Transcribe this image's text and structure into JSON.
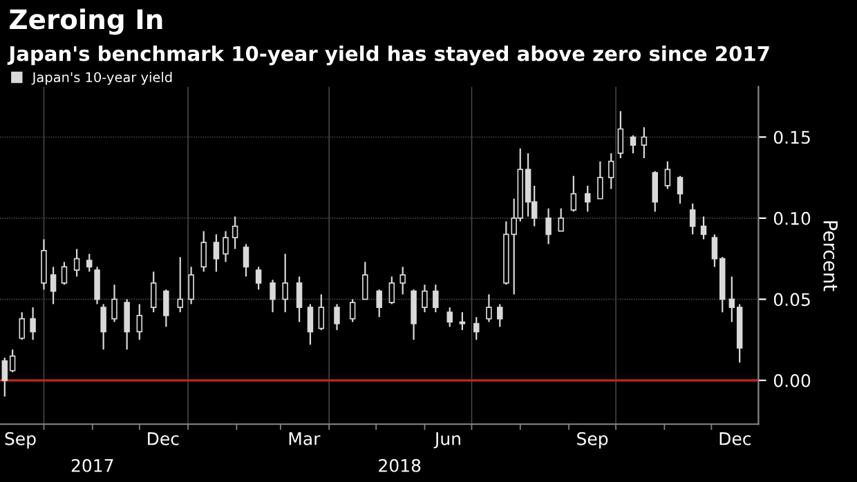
{
  "chart_data": {
    "type": "candlestick",
    "title": "Zeroing In",
    "subtitle": "Japan's benchmark 10-year yield has stayed above zero since 2017",
    "ylabel": "Percent",
    "series": [
      {
        "name": "Japan's 10-year yield",
        "color": "#d9d9d9",
        "x": [
          "2017-09-06",
          "2017-09-11",
          "2017-09-17",
          "2017-09-24",
          "2017-10-01",
          "2017-10-07",
          "2017-10-14",
          "2017-10-22",
          "2017-10-30",
          "2017-11-04",
          "2017-11-08",
          "2017-11-15",
          "2017-11-23",
          "2017-12-01",
          "2017-12-10",
          "2017-12-18",
          "2017-12-27",
          "2018-01-03",
          "2018-01-11",
          "2018-01-19",
          "2018-01-25",
          "2018-01-31",
          "2018-02-07",
          "2018-02-15",
          "2018-02-24",
          "2018-03-04",
          "2018-03-13",
          "2018-03-20",
          "2018-03-27",
          "2018-04-06",
          "2018-04-16",
          "2018-04-24",
          "2018-05-03",
          "2018-05-11",
          "2018-05-18",
          "2018-05-25",
          "2018-06-01",
          "2018-06-08",
          "2018-06-17",
          "2018-06-25",
          "2018-07-04",
          "2018-07-12",
          "2018-07-19",
          "2018-07-23",
          "2018-07-28",
          "2018-08-01",
          "2018-08-06",
          "2018-08-10",
          "2018-08-19",
          "2018-08-27",
          "2018-09-04",
          "2018-09-13",
          "2018-09-21",
          "2018-09-28",
          "2018-10-04",
          "2018-10-12",
          "2018-10-19",
          "2018-10-26",
          "2018-11-03",
          "2018-11-11",
          "2018-11-19",
          "2018-11-26",
          "2018-12-03",
          "2018-12-08",
          "2018-12-14",
          "2018-12-19"
        ],
        "ohlc": [
          [
            0.012,
            0.014,
            -0.01,
            0.0
          ],
          [
            0.006,
            0.019,
            0.005,
            0.015
          ],
          [
            0.026,
            0.042,
            0.025,
            0.038
          ],
          [
            0.038,
            0.045,
            0.025,
            0.03
          ],
          [
            0.06,
            0.087,
            0.056,
            0.08
          ],
          [
            0.065,
            0.07,
            0.047,
            0.055
          ],
          [
            0.06,
            0.073,
            0.059,
            0.07
          ],
          [
            0.068,
            0.081,
            0.064,
            0.075
          ],
          [
            0.074,
            0.078,
            0.067,
            0.07
          ],
          [
            0.068,
            0.07,
            0.047,
            0.05
          ],
          [
            0.045,
            0.047,
            0.019,
            0.03
          ],
          [
            0.038,
            0.059,
            0.036,
            0.05
          ],
          [
            0.048,
            0.05,
            0.019,
            0.03
          ],
          [
            0.03,
            0.047,
            0.025,
            0.04
          ],
          [
            0.045,
            0.067,
            0.042,
            0.06
          ],
          [
            0.055,
            0.056,
            0.033,
            0.04
          ],
          [
            0.045,
            0.076,
            0.042,
            0.05
          ],
          [
            0.05,
            0.07,
            0.047,
            0.065
          ],
          [
            0.07,
            0.092,
            0.067,
            0.085
          ],
          [
            0.085,
            0.09,
            0.067,
            0.075
          ],
          [
            0.078,
            0.092,
            0.073,
            0.088
          ],
          [
            0.088,
            0.101,
            0.081,
            0.095
          ],
          [
            0.082,
            0.084,
            0.064,
            0.07
          ],
          [
            0.068,
            0.07,
            0.056,
            0.06
          ],
          [
            0.06,
            0.062,
            0.042,
            0.05
          ],
          [
            0.05,
            0.078,
            0.042,
            0.06
          ],
          [
            0.06,
            0.064,
            0.036,
            0.045
          ],
          [
            0.045,
            0.047,
            0.022,
            0.03
          ],
          [
            0.032,
            0.053,
            0.031,
            0.045
          ],
          [
            0.045,
            0.047,
            0.031,
            0.035
          ],
          [
            0.038,
            0.05,
            0.036,
            0.048
          ],
          [
            0.05,
            0.073,
            0.05,
            0.065
          ],
          [
            0.055,
            0.056,
            0.039,
            0.045
          ],
          [
            0.048,
            0.064,
            0.047,
            0.06
          ],
          [
            0.06,
            0.07,
            0.053,
            0.065
          ],
          [
            0.055,
            0.056,
            0.025,
            0.035
          ],
          [
            0.045,
            0.059,
            0.042,
            0.055
          ],
          [
            0.055,
            0.059,
            0.042,
            0.045
          ],
          [
            0.042,
            0.045,
            0.033,
            0.036
          ],
          [
            0.036,
            0.042,
            0.031,
            0.035
          ],
          [
            0.035,
            0.039,
            0.025,
            0.03
          ],
          [
            0.038,
            0.053,
            0.036,
            0.045
          ],
          [
            0.045,
            0.047,
            0.033,
            0.038
          ],
          [
            0.06,
            0.098,
            0.059,
            0.09
          ],
          [
            0.09,
            0.112,
            0.053,
            0.1
          ],
          [
            0.1,
            0.143,
            0.098,
            0.13
          ],
          [
            0.13,
            0.14,
            0.101,
            0.11
          ],
          [
            0.11,
            0.12,
            0.095,
            0.1
          ],
          [
            0.1,
            0.106,
            0.084,
            0.09
          ],
          [
            0.092,
            0.106,
            0.092,
            0.1
          ],
          [
            0.105,
            0.126,
            0.104,
            0.115
          ],
          [
            0.115,
            0.12,
            0.104,
            0.11
          ],
          [
            0.112,
            0.135,
            0.112,
            0.125
          ],
          [
            0.125,
            0.14,
            0.118,
            0.135
          ],
          [
            0.14,
            0.166,
            0.137,
            0.155
          ],
          [
            0.15,
            0.151,
            0.14,
            0.145
          ],
          [
            0.145,
            0.156,
            0.137,
            0.15
          ],
          [
            0.128,
            0.129,
            0.104,
            0.11
          ],
          [
            0.12,
            0.135,
            0.118,
            0.13
          ],
          [
            0.125,
            0.126,
            0.109,
            0.115
          ],
          [
            0.105,
            0.109,
            0.09,
            0.095
          ],
          [
            0.095,
            0.101,
            0.087,
            0.09
          ],
          [
            0.088,
            0.09,
            0.07,
            0.075
          ],
          [
            0.075,
            0.076,
            0.042,
            0.05
          ],
          [
            0.05,
            0.064,
            0.036,
            0.045
          ],
          [
            0.045,
            0.047,
            0.011,
            0.02
          ]
        ]
      }
    ],
    "xlim": [
      "2017-09-03",
      "2018-12-31"
    ],
    "xticks": [
      {
        "value": "2017-09-16",
        "label": "Sep"
      },
      {
        "value": "2017-10-01",
        "label": null
      },
      {
        "value": "2017-11-01",
        "label": null
      },
      {
        "value": "2017-12-01",
        "label": null
      },
      {
        "value": "2017-12-16",
        "label": "Dec"
      },
      {
        "value": "2018-01-01",
        "label": null
      },
      {
        "value": "2018-02-01",
        "label": null
      },
      {
        "value": "2018-03-01",
        "label": null
      },
      {
        "value": "2018-03-16",
        "label": "Mar"
      },
      {
        "value": "2018-04-01",
        "label": null
      },
      {
        "value": "2018-05-01",
        "label": null
      },
      {
        "value": "2018-06-01",
        "label": null
      },
      {
        "value": "2018-06-16",
        "label": "Jun"
      },
      {
        "value": "2018-07-01",
        "label": null
      },
      {
        "value": "2018-08-01",
        "label": null
      },
      {
        "value": "2018-09-01",
        "label": null
      },
      {
        "value": "2018-09-16",
        "label": "Sep"
      },
      {
        "value": "2018-10-01",
        "label": null
      },
      {
        "value": "2018-11-01",
        "label": null
      },
      {
        "value": "2018-12-01",
        "label": null
      },
      {
        "value": "2018-12-16",
        "label": "Dec"
      }
    ],
    "x2lim": [
      "2017-09-03",
      "2018-12-31"
    ],
    "x2ticks": [
      {
        "value": "2017-11-01",
        "label": "2017"
      },
      {
        "value": "2018-05-16",
        "label": "2018"
      }
    ],
    "ylim": [
      -0.027,
      0.181
    ],
    "yticks": [
      {
        "value": 0,
        "label": "0.00"
      },
      {
        "value": 0.05,
        "label": "0.05"
      },
      {
        "value": 0.1,
        "label": "0.10"
      },
      {
        "value": 0.15,
        "label": "0.15"
      }
    ],
    "ref_lines": [
      {
        "axis": "y",
        "value": 0,
        "color": "#c0281e"
      }
    ],
    "grid": true,
    "legend": "top left"
  }
}
